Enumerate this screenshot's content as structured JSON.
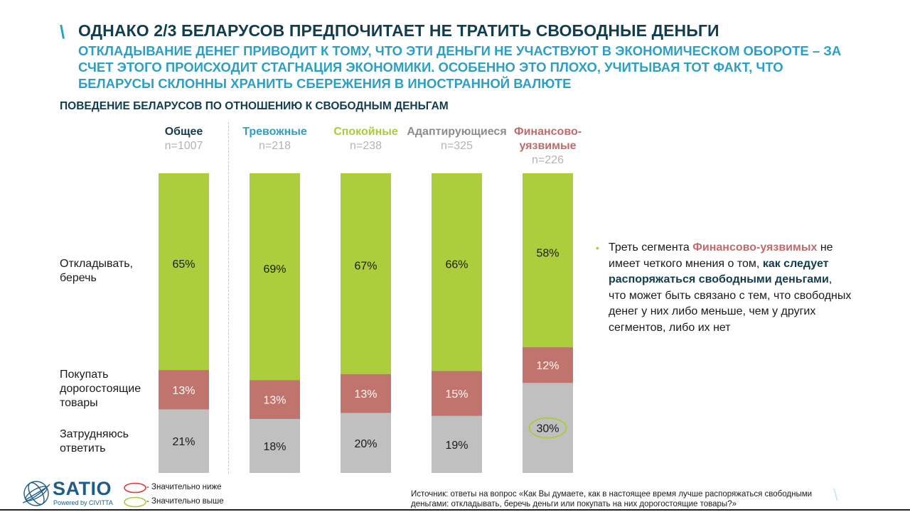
{
  "header": {
    "slash_icon": "\\",
    "title": "ОДНАКО 2/3 БЕЛАРУСОВ ПРЕДПОЧИТАЕТ НЕ ТРАТИТЬ СВОБОДНЫЕ ДЕНЬГИ",
    "subtitle": "ОТКЛАДЫВАНИЕ ДЕНЕГ ПРИВОДИТ К ТОМУ, ЧТО ЭТИ ДЕНЬГИ НЕ УЧАСТВУЮТ В ЭКОНОМИЧЕСКОМ ОБОРОТЕ – ЗА СЧЕТ ЭТОГО ПРОИСХОДИТ СТАГНАЦИЯ ЭКОНОМИКИ. ОСОБЕННО ЭТО ПЛОХО, УЧИТЫВАЯ ТОТ ФАКТ, ЧТО БЕЛАРУСЫ СКЛОННЫ ХРАНИТЬ СБЕРЕЖЕНИЯ В ИНОСТРАННОЙ ВАЛЮТЕ"
  },
  "chart_data": {
    "type": "bar",
    "stacked": true,
    "normalized": true,
    "title": "ПОВЕДЕНИЕ БЕЛАРУСОВ ПО ОТНОШЕНИЮ К СВОБОДНЫМ ДЕНЬГАМ",
    "categories": [
      {
        "name": "Общее",
        "n": "n=1007",
        "color": "#123d4f"
      },
      {
        "name": "Тревожные",
        "n": "n=218",
        "color": "#2e9fc4"
      },
      {
        "name": "Спокойные",
        "n": "n=238",
        "color": "#a9cc3a"
      },
      {
        "name": "Адаптирующиеся",
        "n": "n=325",
        "color": "#8c8c8c"
      },
      {
        "name": "Финансово-уязвимые",
        "n": "n=226",
        "color": "#c06b6b"
      }
    ],
    "series": [
      {
        "name": "Откладывать, беречь",
        "color": "#accd3c",
        "label_color": "#1a1a1a",
        "values": [
          65,
          69,
          67,
          66,
          58
        ]
      },
      {
        "name": "Покупать дорогостоящие товары",
        "color": "#c1736e",
        "label_color": "#ffffff",
        "values": [
          13,
          13,
          13,
          15,
          12
        ]
      },
      {
        "name": "Затрудняюсь ответить",
        "color": "#c0c0c0",
        "label_color": "#1a1a1a",
        "values": [
          21,
          18,
          20,
          19,
          30
        ]
      }
    ],
    "annotations": [
      {
        "category": "Финансово-уязвимые",
        "series": "Затрудняюсь ответить",
        "marker": "significantly-higher-circle",
        "color": "#a9cc3a"
      }
    ],
    "units": "%",
    "legend_placement": "bottom-left"
  },
  "row_labels": [
    "Откладывать,\nберечь",
    "Покупать\nдорогостоящие\nтовары",
    "Затрудняюсь\nответить"
  ],
  "note": {
    "bullet": "•",
    "part1": "Треть сегмента ",
    "highlight1": "Финансово-уязвимых",
    "part2": " не имеет четкого мнения о том, ",
    "highlight2": "как следует распоряжаться свободными деньгами",
    "part3": ", что может быть связано с тем, что свободных денег у них либо меньше, чем у других сегментов, либо их нет"
  },
  "legend": {
    "lower": "- Значительно ниже",
    "higher": "- Значительно выше",
    "lower_color": "#e53935",
    "higher_color": "#a9cc3a"
  },
  "footer": {
    "logo_name": "SATIO",
    "logo_sub": "Powered by CIVITTA",
    "source": "Источник: ответы на вопрос «Как Вы думаете, как в настоящее время лучше распоряжаться свободными деньгами: откладывать, беречь деньги или покупать на них дорогостоящие товары?»",
    "corner_icon": "\\"
  }
}
